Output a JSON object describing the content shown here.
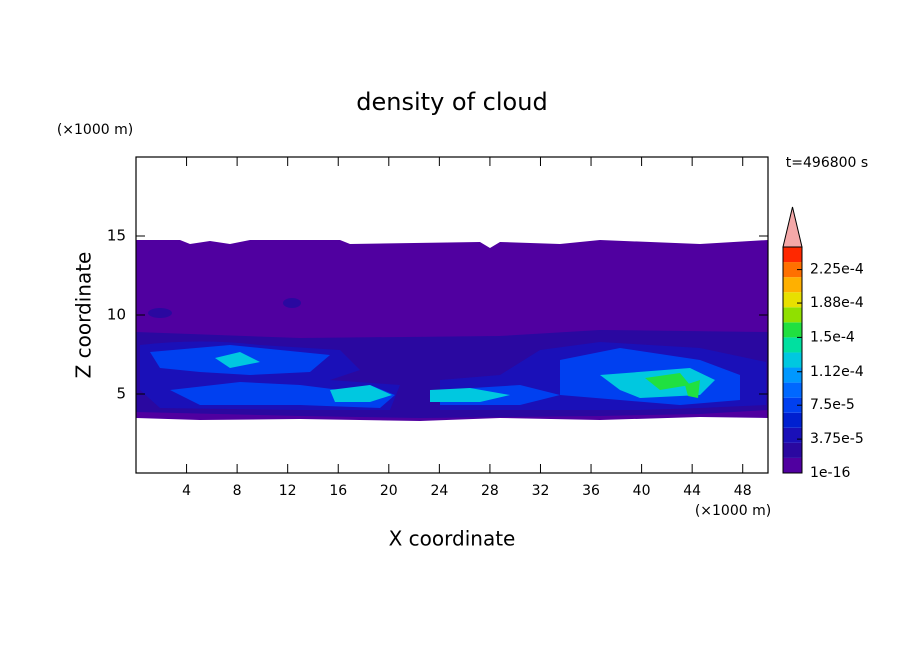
{
  "chart_data": {
    "type": "contour",
    "title": "density of cloud",
    "x_label": "X coordinate",
    "y_label": "Z coordinate",
    "x_unit": "(×1000 m)",
    "y_unit": "(×1000 m)",
    "annotation": "t=496800 s",
    "xlim": [
      0,
      50
    ],
    "xticks": [
      4,
      8,
      12,
      16,
      20,
      24,
      28,
      32,
      36,
      40,
      44,
      48
    ],
    "ylim": [
      0,
      20
    ],
    "yticks": [
      5,
      10,
      15
    ],
    "colorbar": {
      "clim": [
        0,
        0.00025
      ],
      "ticks": [
        1e-16,
        {
          "value": 3.75e-05,
          "label": "3.75e-5"
        },
        {
          "value": 7.5e-05,
          "label": "7.5e-5"
        },
        {
          "value": 0.000112,
          "label": "1.12e-4"
        },
        {
          "value": 0.00015,
          "label": "1.5e-4"
        },
        {
          "value": 0.000188,
          "label": "1.88e-4"
        },
        {
          "value": 0.000225,
          "label": "2.25e-4"
        }
      ],
      "colors": [
        "#5000a0",
        "#2a08a0",
        "#1a10b8",
        "#0020d0",
        "#0040f0",
        "#0068ff",
        "#0098ff",
        "#00c8e0",
        "#00e0a0",
        "#20e040",
        "#90e000",
        "#e8e000",
        "#ffb000",
        "#ff7000",
        "#ff2800"
      ],
      "extend_color": "#f4a8a8"
    }
  }
}
